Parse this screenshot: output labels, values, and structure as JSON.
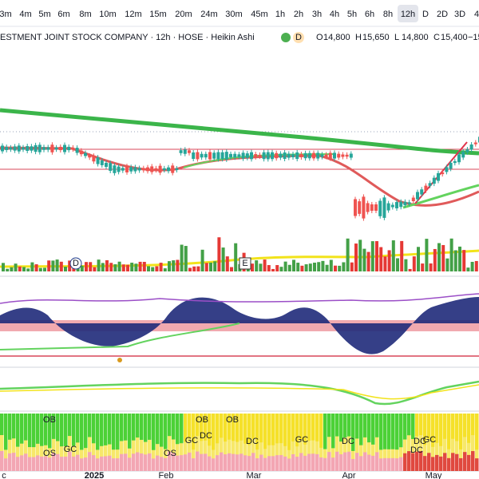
{
  "toolbar": {
    "intervals": [
      "3m",
      "4m",
      "5m",
      "6m",
      "8m",
      "10m",
      "12m",
      "15m",
      "20m",
      "24m",
      "30m",
      "45m",
      "1h",
      "2h",
      "3h",
      "4h",
      "5h",
      "6h",
      "8h",
      "12h",
      "D",
      "2D",
      "3D",
      "4"
    ]
  },
  "header": {
    "title": "ESTMENT JOINT STOCK COMPANY · 12h · HOSE · Heikin Ashi",
    "badge": "D",
    "ohlc": [
      {
        "key": "O",
        "value": "14,800"
      },
      {
        "key": "H",
        "value": "15,650"
      },
      {
        "key": "L",
        "value": "14,800"
      },
      {
        "key": "C",
        "value": "15,400"
      }
    ],
    "change": "−15"
  },
  "events": [
    "D",
    "E"
  ],
  "oscillator_labels": [
    "OB",
    "OS",
    "GC",
    "OB",
    "OB",
    "OS",
    "GC",
    "DC",
    "DC",
    "GC",
    "DC",
    "DC",
    "GC",
    "DC"
  ],
  "x_axis": [
    "c",
    "2025",
    "Feb",
    "Mar",
    "Apr",
    "May"
  ]
}
